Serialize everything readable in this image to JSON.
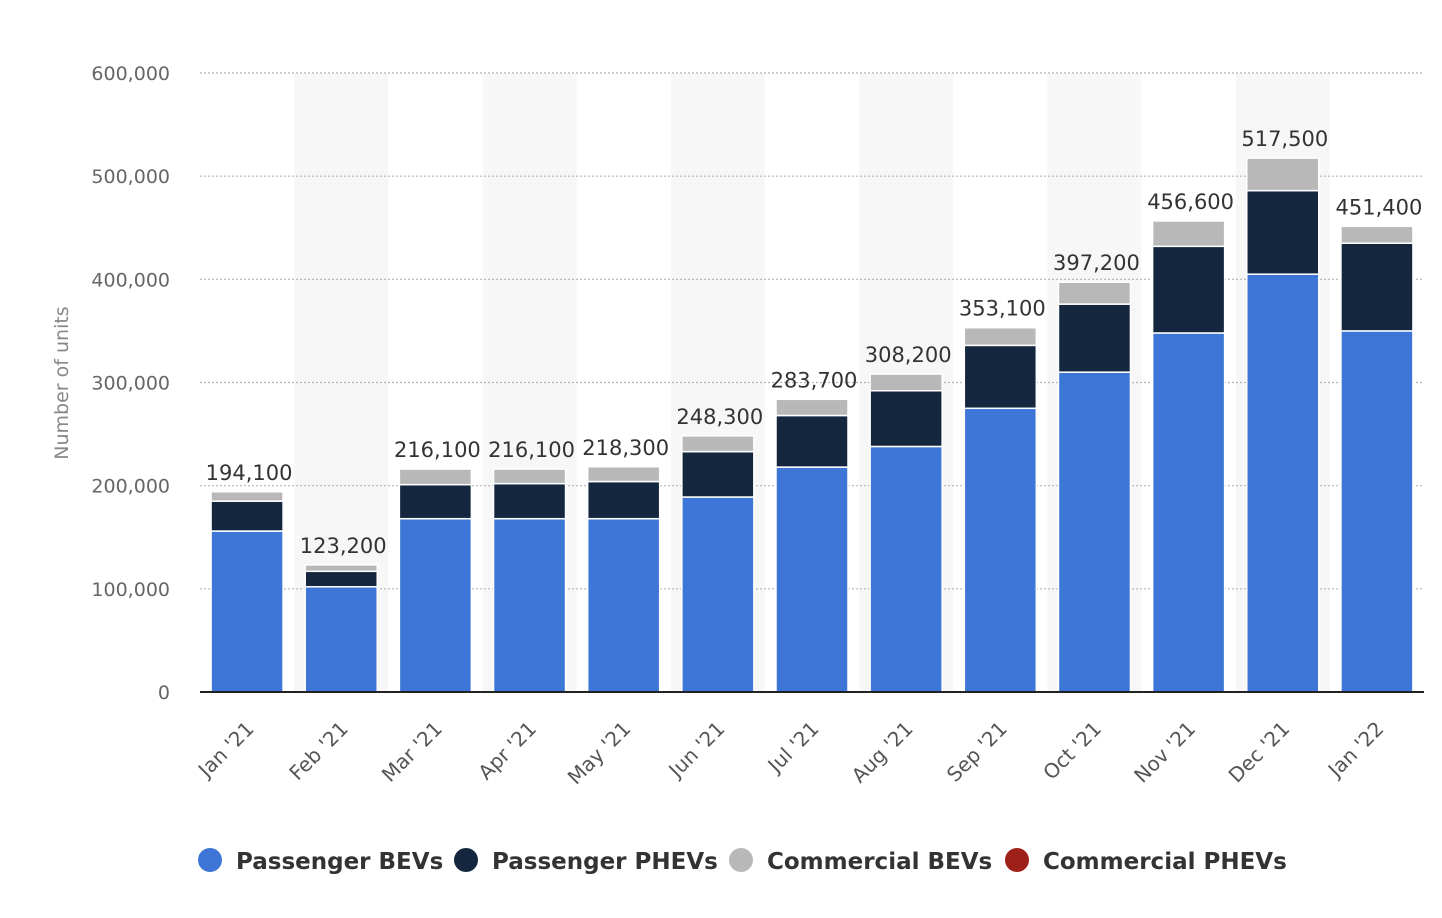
{
  "chart_data": {
    "type": "bar",
    "stacked": true,
    "title": "",
    "xlabel": "",
    "ylabel": "Number of units",
    "ylim": [
      0,
      600000
    ],
    "yticks": [
      0,
      100000,
      200000,
      300000,
      400000,
      500000,
      600000
    ],
    "ytick_labels": [
      "0",
      "100,000",
      "200,000",
      "300,000",
      "400,000",
      "500,000",
      "600,000"
    ],
    "grid": true,
    "legend_position": "bottom",
    "categories": [
      "Jan '21",
      "Feb '21",
      "Mar '21",
      "Apr '21",
      "May '21",
      "Jun '21",
      "Jul '21",
      "Aug '21",
      "Sep '21",
      "Oct '21",
      "Nov '21",
      "Dec '21",
      "Jan '22"
    ],
    "series": [
      {
        "name": "Passenger BEVs",
        "color": "#3d76d6",
        "values": [
          156000,
          102000,
          168000,
          168000,
          168000,
          189000,
          218000,
          238000,
          275000,
          310000,
          348000,
          405000,
          350000
        ]
      },
      {
        "name": "Passenger PHEVs",
        "color": "#15263f",
        "values": [
          29000,
          15000,
          33000,
          34000,
          36000,
          44000,
          50000,
          54000,
          61000,
          66000,
          84000,
          81000,
          85000
        ]
      },
      {
        "name": "Commercial BEVs",
        "color": "#b8b8b8",
        "values": [
          9100,
          6200,
          15100,
          14100,
          14300,
          15300,
          15700,
          16200,
          17100,
          21200,
          24600,
          31500,
          16400
        ]
      },
      {
        "name": "Commercial PHEVs",
        "color": "#9e2119",
        "values": [
          0,
          0,
          0,
          0,
          0,
          0,
          0,
          0,
          0,
          0,
          0,
          0,
          0
        ]
      }
    ],
    "totals": [
      194100,
      123200,
      216100,
      216100,
      218300,
      248300,
      283700,
      308200,
      353100,
      397200,
      456600,
      517500,
      451400
    ],
    "total_labels": [
      "194,100",
      "123,200",
      "216,100",
      "216,100",
      "218,300",
      "248,300",
      "283,700",
      "308,200",
      "353,100",
      "397,200",
      "456,600",
      "517,500",
      "451,400"
    ]
  }
}
